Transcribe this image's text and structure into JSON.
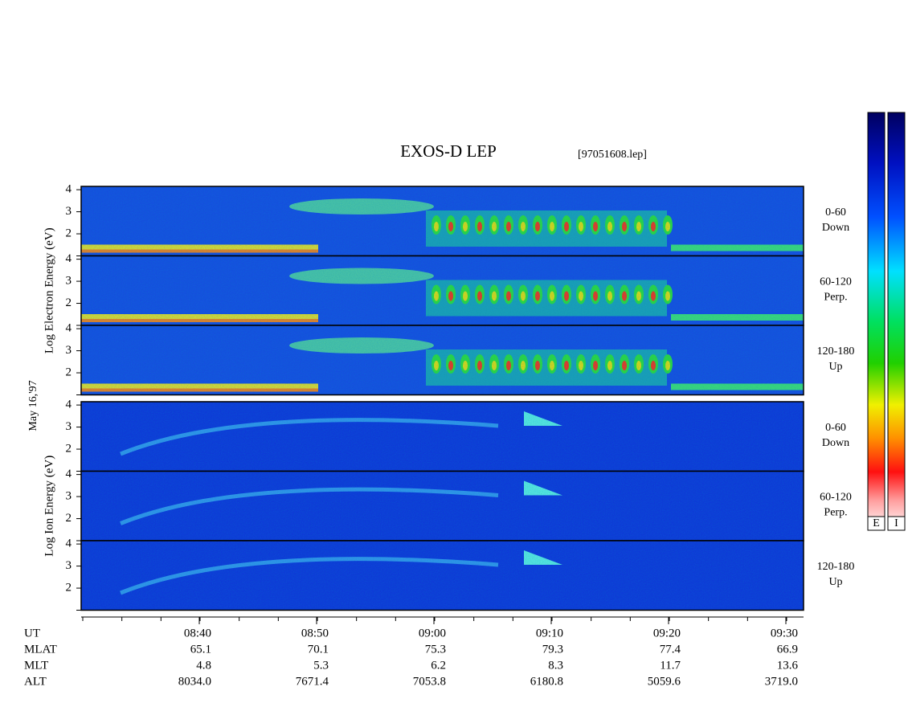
{
  "figure": {
    "title": "EXOS-D LEP",
    "file": "[97051608.lep]",
    "date": "May 16,'97",
    "ylim": [
      1,
      4.15
    ],
    "yticks": [
      2,
      3,
      4
    ],
    "groups": [
      {
        "ylabel": "Log Electron Energy (eV)",
        "species": "electron",
        "panels": [
          {
            "label": [
              "0-60",
              "Down"
            ]
          },
          {
            "label": [
              "60-120",
              "Perp."
            ]
          },
          {
            "label": [
              "120-180",
              "Up"
            ]
          }
        ]
      },
      {
        "ylabel": "Log Ion Energy (eV)",
        "species": "ion",
        "panels": [
          {
            "label": [
              "0-60",
              "Down"
            ]
          },
          {
            "label": [
              "60-120",
              "Perp."
            ]
          },
          {
            "label": [
              "120-180",
              "Up"
            ]
          }
        ]
      }
    ],
    "time_axis": {
      "label": "UT",
      "ticks": [
        "08:40",
        "08:50",
        "09:00",
        "09:10",
        "09:20",
        "09:30"
      ]
    },
    "ephemeris": [
      {
        "label": "MLAT",
        "values": [
          "65.1",
          "70.1",
          "75.3",
          "79.3",
          "77.4",
          "66.9"
        ]
      },
      {
        "label": "MLT",
        "values": [
          "4.8",
          "5.3",
          "6.2",
          "8.3",
          "11.7",
          "13.6"
        ]
      },
      {
        "label": "ALT",
        "values": [
          "8034.0",
          "7671.4",
          "7053.8",
          "6180.8",
          "5059.6",
          "3719.0"
        ]
      }
    ],
    "colorbars": [
      "E",
      "I"
    ]
  }
}
